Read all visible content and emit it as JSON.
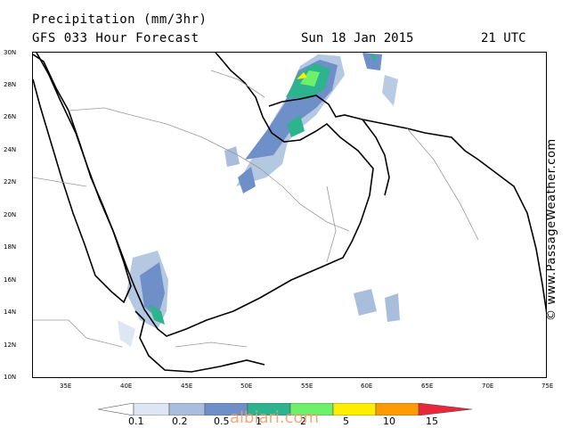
{
  "header": {
    "title": "Precipitation (mm/3hr)",
    "forecast": "GFS 033 Hour Forecast",
    "date": "Sun 18 Jan 2015",
    "time": "21 UTC"
  },
  "map": {
    "lat_labels": [
      "30N",
      "28N",
      "26N",
      "24N",
      "22N",
      "20N",
      "18N",
      "16N",
      "14N",
      "12N",
      "10N"
    ],
    "lon_labels": [
      "35E",
      "40E",
      "45E",
      "50E",
      "55E",
      "60E",
      "65E",
      "70E",
      "75E"
    ],
    "region": "Arabian Peninsula"
  },
  "credit": "© www.PassageWeather.com",
  "legend": {
    "ticks": [
      "0.1",
      "0.2",
      "0.5",
      "1",
      "2",
      "5",
      "10",
      "15"
    ],
    "colors": [
      "#ffffff",
      "#dde6f2",
      "#a8bedc",
      "#6f8fc8",
      "#2db38d",
      "#6ef06a",
      "#ffee00",
      "#ff9a00",
      "#e8283a"
    ]
  },
  "watermark": "albiari.com"
}
